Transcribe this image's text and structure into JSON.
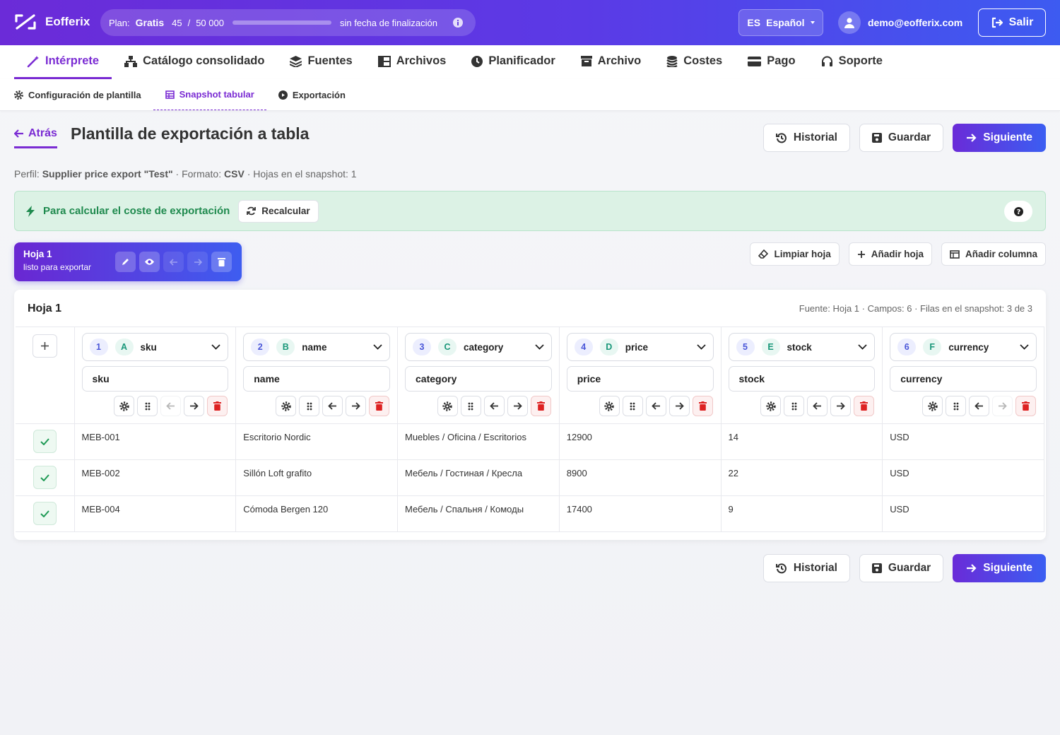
{
  "header": {
    "brand": "Eofferix",
    "plan_label": "Plan:",
    "plan_name": "Gratis",
    "usage_used": "45",
    "usage_separator": "/",
    "usage_limit": "50 000",
    "plan_end": "sin fecha de finalización",
    "language_code": "ES",
    "language": "Español",
    "user_email": "demo@eofferix.com",
    "logout": "Salir"
  },
  "nav": {
    "tabs": [
      "Intérprete",
      "Catálogo consolidado",
      "Fuentes",
      "Archivos",
      "Planificador",
      "Archivo",
      "Costes",
      "Pago",
      "Soporte"
    ],
    "active": 0
  },
  "subnav": {
    "tabs": [
      "Configuración de plantilla",
      "Snapshot tabular",
      "Exportación"
    ],
    "active": 1
  },
  "page": {
    "back": "Atrás",
    "title": "Plantilla de exportación a tabla",
    "actions": {
      "history": "Historial",
      "save": "Guardar",
      "next": "Siguiente"
    }
  },
  "meta": {
    "profile_label": "Perfil:",
    "profile": "Supplier price export \"Test\"",
    "format_label": "· Formato:",
    "format": "CSV",
    "sheets": "· Hojas en el snapshot: 1"
  },
  "alert": {
    "text": "Para calcular el coste de exportación",
    "button": "Recalcular"
  },
  "sheet_tab": {
    "name": "Hoja 1",
    "status": "listo para exportar"
  },
  "sheet_actions": [
    "Limpiar hoja",
    "Añadir hoja",
    "Añadir columna"
  ],
  "table": {
    "title": "Hoja 1",
    "info": "Fuente: Hoja 1 · Campos: 6 · Filas en el snapshot: 3 de 3",
    "columns": [
      {
        "index": 1,
        "letter": "A",
        "field": "sku",
        "header": "sku"
      },
      {
        "index": 2,
        "letter": "B",
        "field": "name",
        "header": "name"
      },
      {
        "index": 3,
        "letter": "C",
        "field": "category",
        "header": "category"
      },
      {
        "index": 4,
        "letter": "D",
        "field": "price",
        "header": "price"
      },
      {
        "index": 5,
        "letter": "E",
        "field": "stock",
        "header": "stock"
      },
      {
        "index": 6,
        "letter": "F",
        "field": "currency",
        "header": "currency"
      }
    ],
    "rows": [
      [
        "MEB-001",
        "Escritorio Nordic",
        "Muebles / Oficina / Escritorios",
        12900,
        14,
        "USD"
      ],
      [
        "MEB-002",
        "Sillón Loft grafito",
        "Мебель / Гостиная / Кресла",
        8900,
        22,
        "USD"
      ],
      [
        "MEB-004",
        "Cómoda Bergen 120",
        "Мебель / Спальня / Комоды",
        17400,
        9,
        "USD"
      ]
    ]
  }
}
